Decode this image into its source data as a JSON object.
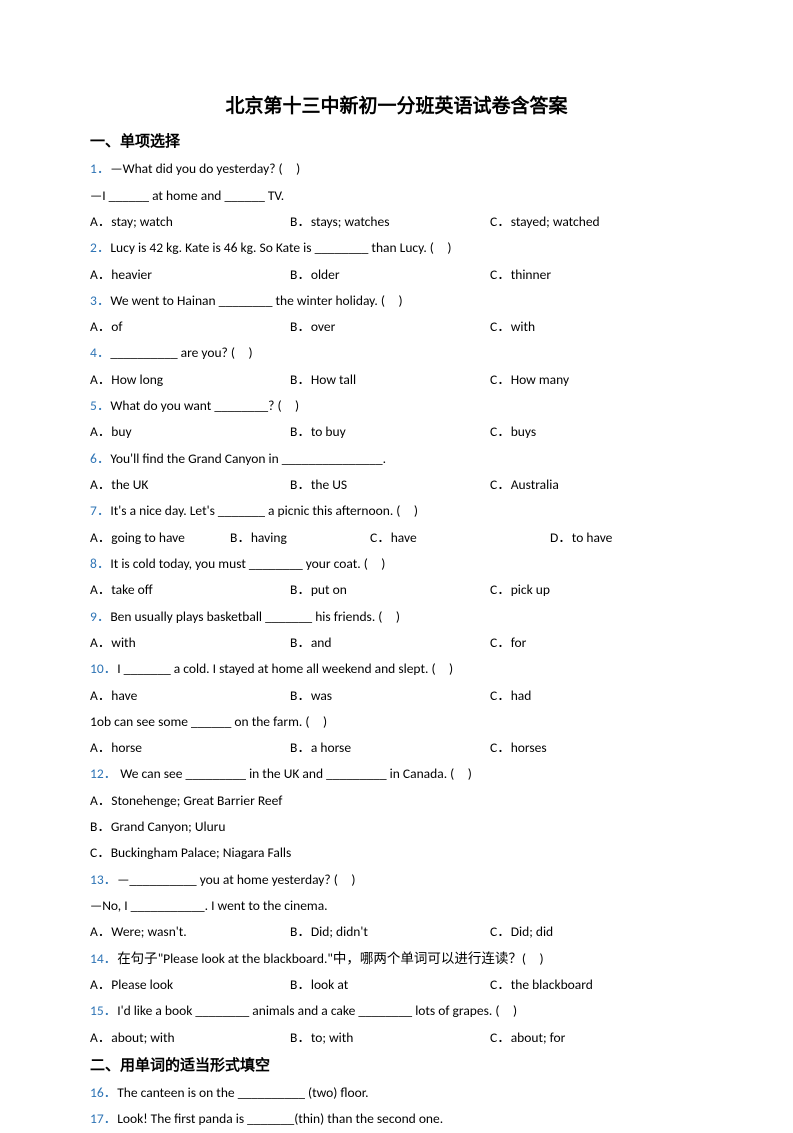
{
  "title": "北京第十三中新初一分班英语试卷含答案",
  "section1": "一、单项选择",
  "section2": "二、用单词的适当形式填空",
  "q1": {
    "num": "1．",
    "text": "—What did you do yesterday? (　)",
    "line2": "—I ______ at home and ______ TV.",
    "A": "A．stay; watch",
    "B": "B．stays; watches",
    "C": "C．stayed; watched"
  },
  "q2": {
    "num": "2．",
    "text": "Lucy is 42 kg. Kate is 46 kg. So Kate is ________ than Lucy. (　)",
    "A": "A．heavier",
    "B": "B．older",
    "C": "C．thinner"
  },
  "q3": {
    "num": "3．",
    "text": "We went to Hainan ________ the winter holiday. (　)",
    "A": "A．of",
    "B": "B．over",
    "C": "C．with"
  },
  "q4": {
    "num": "4．",
    "text": "__________ are you? (　)",
    "A": "A．How long",
    "B": "B．How tall",
    "C": "C．How many"
  },
  "q5": {
    "num": "5．",
    "text": "What do you want ________? (　)",
    "A": "A．buy",
    "B": "B．to buy",
    "C": "C．buys"
  },
  "q6": {
    "num": "6．",
    "text": "You'll find the Grand Canyon in _______________.",
    "A": "A．the UK",
    "B": "B．the US",
    "C": "C．Australia"
  },
  "q7": {
    "num": "7．",
    "text": "It's a nice day. Let's _______ a picnic this afternoon. (　)",
    "A": "A．going to have",
    "B": "B．having",
    "C": "C．have",
    "D": "D．to have"
  },
  "q8": {
    "num": "8．",
    "text": "It is cold today, you must ________ your coat. (　)",
    "A": "A．take off",
    "B": "B．put on",
    "C": "C．pick up"
  },
  "q9": {
    "num": "9．",
    "text": "Ben usually plays basketball _______ his friends. (　)",
    "A": "A．with",
    "B": "B．and",
    "C": "C．for"
  },
  "q10": {
    "num": "10．",
    "text": "I _______ a cold. I stayed at home all weekend and slept. (　)",
    "A": "A．have",
    "B": "B．was",
    "C": "C．had"
  },
  "q10b": {
    "text": "1ob can see some ______ on the farm. (　)",
    "A": "A．horse",
    "B": "B．a horse",
    "C": "C．horses"
  },
  "q12": {
    "num": "12．",
    "text": " We can see _________ in the UK and _________ in Canada. (　)",
    "A": "A．Stonehenge; Great Barrier Reef",
    "B": "B．Grand Canyon; Uluru",
    "C": "C．Buckingham Palace; Niagara Falls"
  },
  "q13": {
    "num": "13．",
    "text": "—__________ you at home yesterday? (　)",
    "line2": "—No, I ___________. I went to the cinema.",
    "A": "A．Were; wasn't.",
    "B": "B．Did; didn't",
    "C": "C．Did; did"
  },
  "q14": {
    "num": "14．",
    "prefix": "在句子",
    "quote": "\"Please look at the blackboard.\"",
    "mid": "中，哪两个单词可以进行连读？",
    "tail": "(　)",
    "A": "A．Please look",
    "B": "B．look at",
    "C": "C．the blackboard"
  },
  "q15": {
    "num": "15．",
    "text": "I'd like a book ________ animals and a cake ________ lots of grapes. (　)",
    "A": "A．about; with",
    "B": "B．to; with",
    "C": "C．about; for"
  },
  "q16": {
    "num": "16．",
    "text": "The canteen is on the __________ (two) floor."
  },
  "q17": {
    "num": "17．",
    "text": "Look! The first panda is _______(thin) than the second one."
  }
}
